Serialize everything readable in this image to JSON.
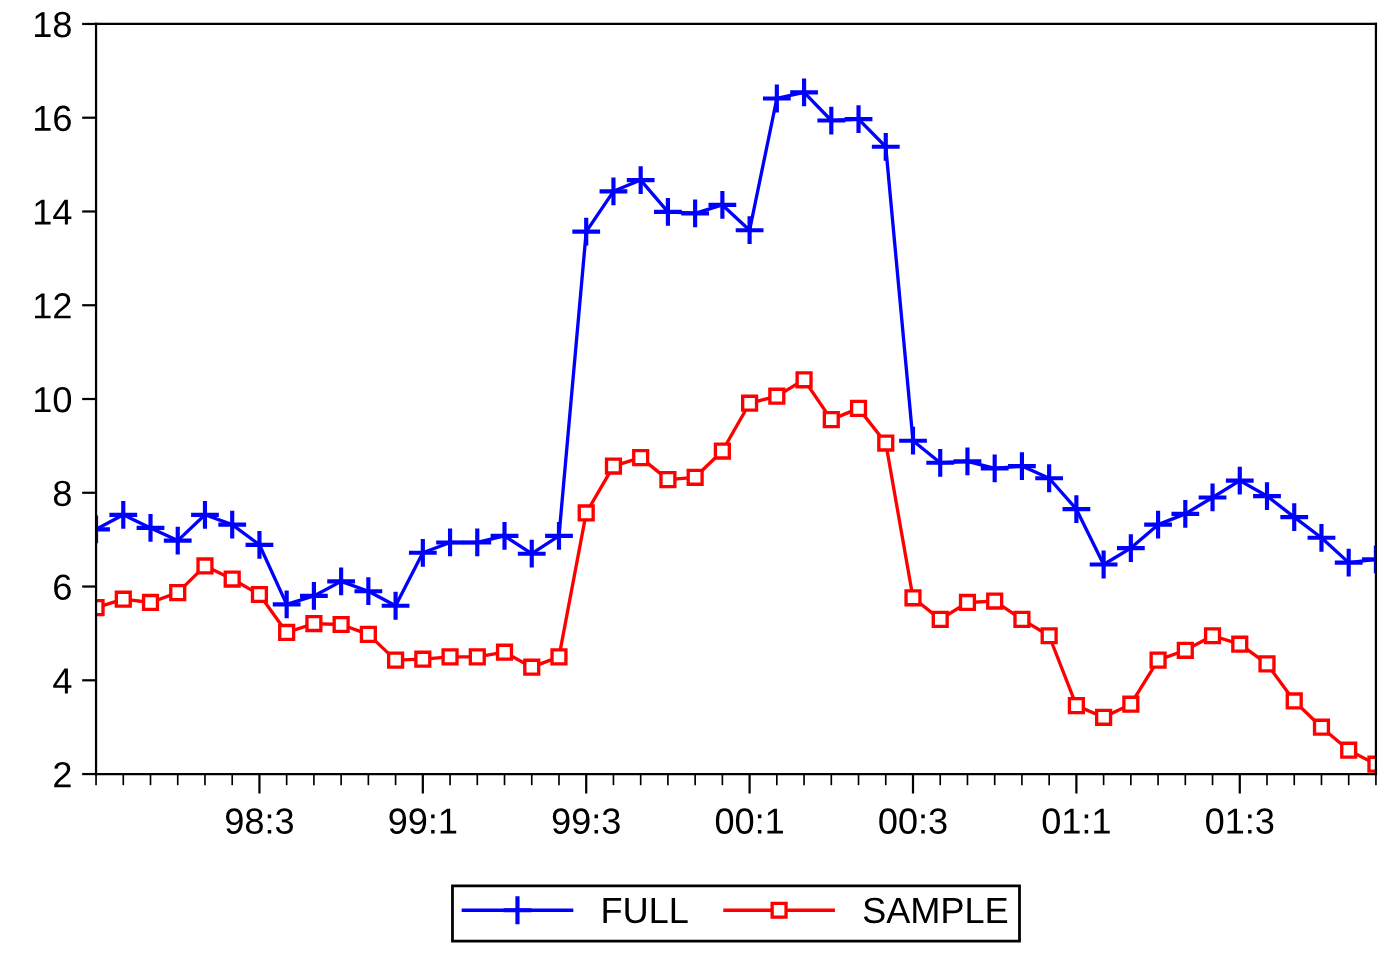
{
  "chart_data": {
    "type": "line",
    "categories": [
      null,
      null,
      null,
      null,
      null,
      null,
      "98:3",
      null,
      null,
      null,
      null,
      null,
      "99:1",
      null,
      null,
      null,
      null,
      null,
      "99:3",
      null,
      null,
      null,
      null,
      null,
      "00:1",
      null,
      null,
      null,
      null,
      null,
      "00:3",
      null,
      null,
      null,
      null,
      null,
      "01:1",
      null,
      null,
      null,
      null,
      null,
      "01:3",
      null,
      null,
      null,
      null,
      null
    ],
    "series": [
      {
        "name": "FULL",
        "color": "#0000ff",
        "marker": "cross",
        "values": [
          7.22,
          7.53,
          7.25,
          6.98,
          7.53,
          7.32,
          6.89,
          5.62,
          5.8,
          6.11,
          5.9,
          5.59,
          6.72,
          6.94,
          6.94,
          7.08,
          6.7,
          7.08,
          13.57,
          14.43,
          14.67,
          13.99,
          13.96,
          14.14,
          13.6,
          16.41,
          16.54,
          15.94,
          15.97,
          15.38,
          9.11,
          8.64,
          8.67,
          8.52,
          8.57,
          8.31,
          7.65,
          6.47,
          6.82,
          7.32,
          7.55,
          7.9,
          8.26,
          7.93,
          7.48,
          7.04,
          6.51,
          6.58
        ]
      },
      {
        "name": "SAMPLE",
        "color": "#ff0000",
        "marker": "square",
        "values": [
          5.55,
          5.73,
          5.66,
          5.87,
          6.44,
          6.16,
          5.83,
          5.02,
          5.21,
          5.19,
          4.98,
          4.43,
          4.45,
          4.5,
          4.5,
          4.6,
          4.28,
          4.5,
          7.57,
          8.57,
          8.75,
          8.28,
          8.33,
          8.89,
          9.91,
          10.06,
          10.41,
          9.56,
          9.8,
          9.06,
          5.76,
          5.3,
          5.66,
          5.69,
          5.3,
          4.95,
          3.46,
          3.21,
          3.49,
          4.43,
          4.64,
          4.95,
          4.77,
          4.35,
          3.56,
          3.0,
          2.51,
          2.21
        ]
      }
    ],
    "ylim": [
      2,
      18
    ],
    "yticks": [
      2,
      4,
      6,
      8,
      10,
      12,
      14,
      16,
      18
    ],
    "grid": false,
    "legend": "bottom",
    "line_style": "solid"
  }
}
